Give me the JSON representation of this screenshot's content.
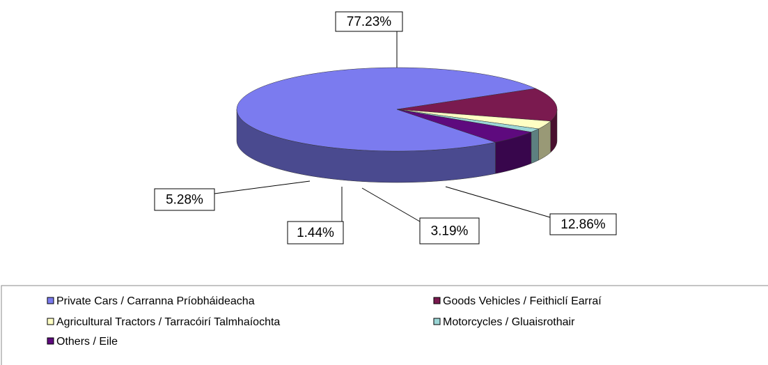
{
  "chart_data": {
    "type": "pie",
    "categories": [
      "Private Cars / Carranna Príobháideacha",
      "Goods Vehicles / Feithiclí Earraí",
      "Agricultural Tractors / Tarracóirí Talmhaíochta",
      "Motorcycles / Gluaisrothair",
      "Others / Eile"
    ],
    "values": [
      77.23,
      12.86,
      3.19,
      1.44,
      5.28
    ],
    "value_labels": [
      "77.23%",
      "12.86%",
      "3.19%",
      "1.44%",
      "5.28%"
    ],
    "colors": [
      "#7b7bef",
      "#7a1a4f",
      "#ffffc4",
      "#9bd6d6",
      "#5e0a7e"
    ],
    "legend": "bottom"
  }
}
